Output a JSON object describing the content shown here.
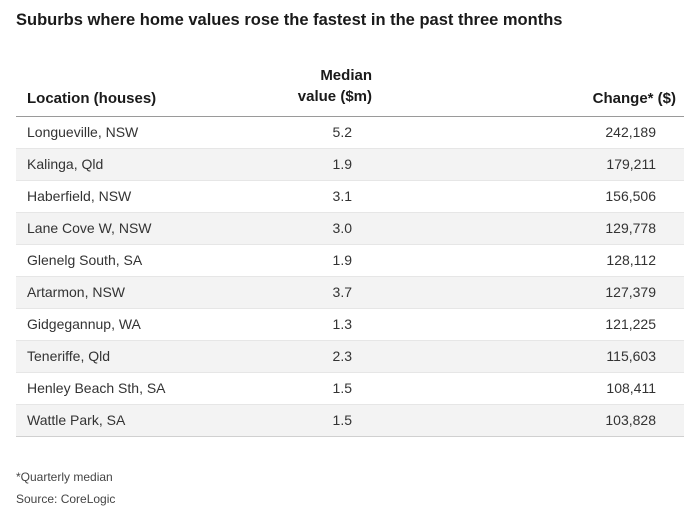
{
  "chart_data": {
    "type": "table",
    "title": "Suburbs where home values rose the fastest in the past three months",
    "columns": [
      "Location (houses)",
      "Median value ($m)",
      "Change* ($)"
    ],
    "rows": [
      {
        "location": "Longueville, NSW",
        "median": "5.2",
        "change": "242,189"
      },
      {
        "location": "Kalinga, Qld",
        "median": "1.9",
        "change": "179,211"
      },
      {
        "location": "Haberfield, NSW",
        "median": "3.1",
        "change": "156,506"
      },
      {
        "location": "Lane Cove W, NSW",
        "median": "3.0",
        "change": "129,778"
      },
      {
        "location": "Glenelg South, SA",
        "median": "1.9",
        "change": "128,112"
      },
      {
        "location": "Artarmon, NSW",
        "median": "3.7",
        "change": "127,379"
      },
      {
        "location": "Gidgegannup, WA",
        "median": "1.3",
        "change": "121,225"
      },
      {
        "location": "Teneriffe, Qld",
        "median": "2.3",
        "change": "115,603"
      },
      {
        "location": "Henley Beach Sth, SA",
        "median": "1.5",
        "change": "108,411"
      },
      {
        "location": "Wattle Park, SA",
        "median": "1.5",
        "change": "103,828"
      }
    ]
  },
  "header": {
    "location": "Location (houses)",
    "median_line1": "Median",
    "median_line2": "value ($m)",
    "change": "Change* ($)"
  },
  "footnotes": {
    "note": "*Quarterly median",
    "source": "Source: CoreLogic"
  },
  "colors": {
    "row_shade": "#f3f3f3",
    "text": "#333333"
  }
}
